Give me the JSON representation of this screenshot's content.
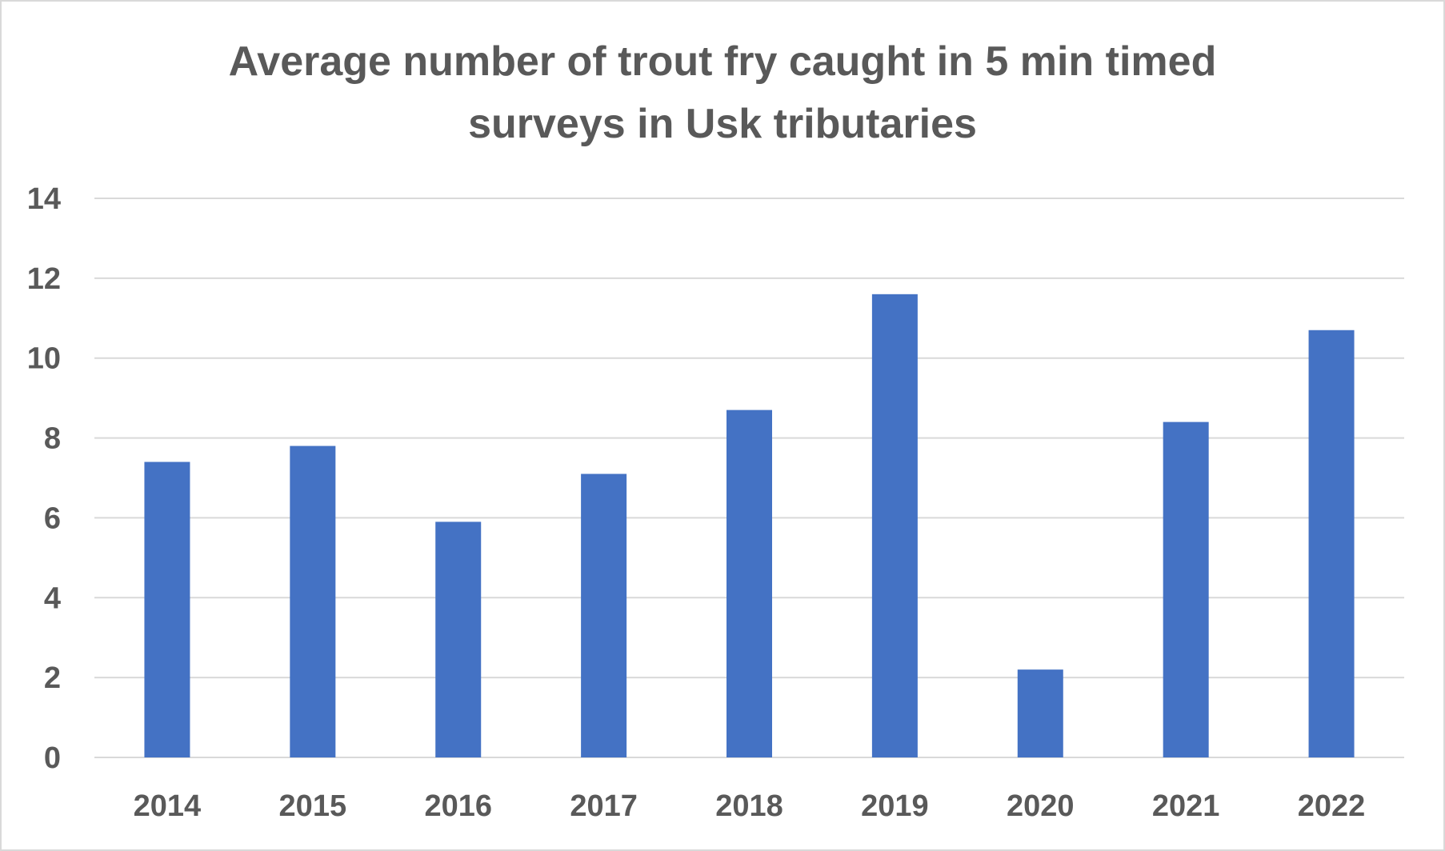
{
  "chart_data": {
    "type": "bar",
    "title": "Average number of trout fry caught in 5 min timed surveys in Usk tributaries",
    "title_lines": [
      "Average number of trout fry caught in 5 min timed",
      "surveys in Usk tributaries"
    ],
    "xlabel": "",
    "ylabel": "",
    "categories": [
      "2014",
      "2015",
      "2016",
      "2017",
      "2018",
      "2019",
      "2020",
      "2021",
      "2022"
    ],
    "values": [
      7.4,
      7.8,
      5.9,
      7.1,
      8.7,
      11.6,
      2.2,
      8.4,
      10.7
    ],
    "ylim": [
      0,
      14
    ],
    "yticks": [
      0,
      2,
      4,
      6,
      8,
      10,
      12,
      14
    ],
    "grid": true,
    "legend": "none",
    "bar_color": "#4472c4",
    "gridline_color": "#d9d9d9",
    "text_color": "#595959"
  }
}
